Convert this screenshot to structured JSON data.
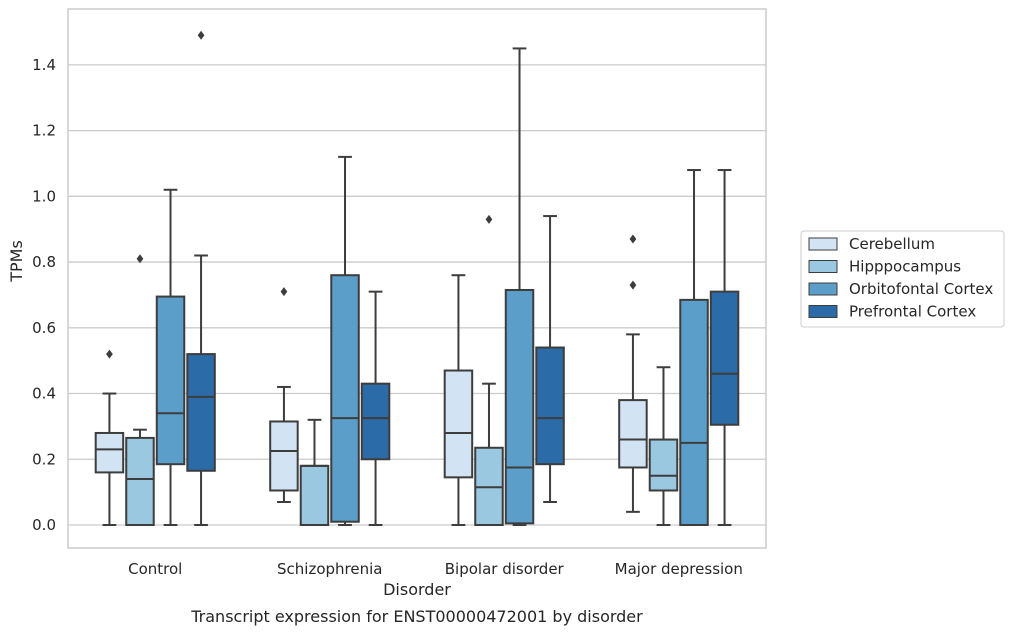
{
  "chart_data": {
    "type": "boxplot",
    "title": "",
    "caption": "Transcript expression for ENST00000472001 by disorder",
    "xlabel": "Disorder",
    "ylabel": "TPMs",
    "ylim": [
      -0.07,
      1.57
    ],
    "yticks": [
      0.0,
      0.2,
      0.4,
      0.6,
      0.8,
      1.0,
      1.2,
      1.4
    ],
    "ytick_labels": [
      "0.0",
      "0.2",
      "0.4",
      "0.6",
      "0.8",
      "1.0",
      "1.2",
      "1.4"
    ],
    "grid": "horizontal",
    "legend_position": "right",
    "categories": [
      "Control",
      "Schizophrenia",
      "Bipolar disorder",
      "Major depression"
    ],
    "series": [
      {
        "name": "Cerebellum",
        "color": "#d2e3f3",
        "boxes": [
          {
            "whislo": 0.0,
            "q1": 0.16,
            "med": 0.23,
            "q3": 0.28,
            "whishi": 0.4,
            "fliers": [
              0.52
            ]
          },
          {
            "whislo": 0.07,
            "q1": 0.105,
            "med": 0.225,
            "q3": 0.315,
            "whishi": 0.42,
            "fliers": [
              0.71
            ]
          },
          {
            "whislo": 0.0,
            "q1": 0.145,
            "med": 0.28,
            "q3": 0.47,
            "whishi": 0.76,
            "fliers": []
          },
          {
            "whislo": 0.04,
            "q1": 0.175,
            "med": 0.26,
            "q3": 0.38,
            "whishi": 0.58,
            "fliers": [
              0.73,
              0.87
            ]
          }
        ]
      },
      {
        "name": "Hipppocampus",
        "color": "#9ac8e0",
        "boxes": [
          {
            "whislo": 0.0,
            "q1": 0.0,
            "med": 0.14,
            "q3": 0.265,
            "whishi": 0.29,
            "fliers": [
              0.81
            ]
          },
          {
            "whislo": 0.0,
            "q1": 0.0,
            "med": 0.18,
            "q3": 0.18,
            "whishi": 0.32,
            "fliers": []
          },
          {
            "whislo": 0.0,
            "q1": 0.0,
            "med": 0.115,
            "q3": 0.235,
            "whishi": 0.43,
            "fliers": [
              0.93
            ]
          },
          {
            "whislo": 0.0,
            "q1": 0.105,
            "med": 0.15,
            "q3": 0.26,
            "whishi": 0.48,
            "fliers": []
          }
        ]
      },
      {
        "name": "Orbitofontal Cortex",
        "color": "#5a9ec9",
        "boxes": [
          {
            "whislo": 0.0,
            "q1": 0.185,
            "med": 0.34,
            "q3": 0.695,
            "whishi": 1.02,
            "fliers": []
          },
          {
            "whislo": 0.0,
            "q1": 0.01,
            "med": 0.325,
            "q3": 0.76,
            "whishi": 1.12,
            "fliers": []
          },
          {
            "whislo": 0.0,
            "q1": 0.005,
            "med": 0.175,
            "q3": 0.715,
            "whishi": 1.45,
            "fliers": []
          },
          {
            "whislo": 0.0,
            "q1": 0.0,
            "med": 0.25,
            "q3": 0.685,
            "whishi": 1.08,
            "fliers": []
          }
        ]
      },
      {
        "name": "Prefrontal Cortex",
        "color": "#2b6ba8",
        "boxes": [
          {
            "whislo": 0.0,
            "q1": 0.165,
            "med": 0.39,
            "q3": 0.52,
            "whishi": 0.82,
            "fliers": [
              1.49
            ]
          },
          {
            "whislo": 0.0,
            "q1": 0.2,
            "med": 0.325,
            "q3": 0.43,
            "whishi": 0.71,
            "fliers": []
          },
          {
            "whislo": 0.07,
            "q1": 0.185,
            "med": 0.325,
            "q3": 0.54,
            "whishi": 0.94,
            "fliers": []
          },
          {
            "whislo": 0.0,
            "q1": 0.305,
            "med": 0.46,
            "q3": 0.71,
            "whishi": 1.08,
            "fliers": []
          }
        ]
      }
    ]
  }
}
